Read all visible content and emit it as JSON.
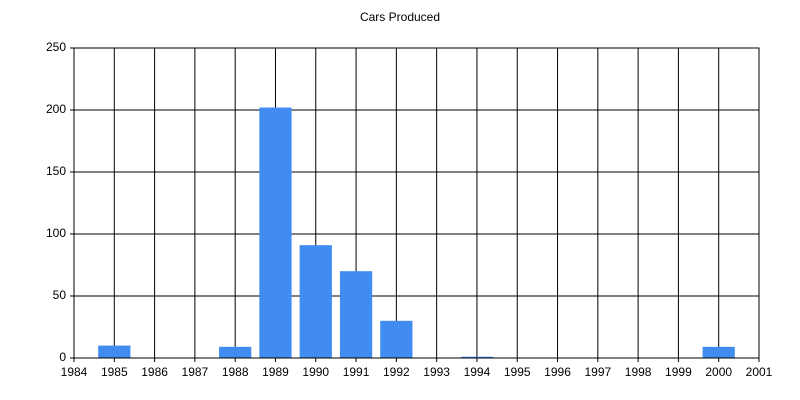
{
  "chart_data": {
    "type": "bar",
    "title": "Cars Produced",
    "x": [
      1985,
      1988,
      1989,
      1990,
      1991,
      1992,
      1994,
      2000
    ],
    "values": [
      10,
      9,
      202,
      91,
      70,
      30,
      1,
      9
    ],
    "color": "#418cf0",
    "xlim": [
      1984,
      2001
    ],
    "xticks": [
      1984,
      1985,
      1986,
      1987,
      1988,
      1989,
      1990,
      1991,
      1992,
      1993,
      1994,
      1995,
      1996,
      1997,
      1998,
      1999,
      2000,
      2001
    ],
    "ylim": [
      0,
      250
    ],
    "yticks": [
      0,
      50,
      100,
      150,
      200,
      250
    ],
    "grid": true
  }
}
